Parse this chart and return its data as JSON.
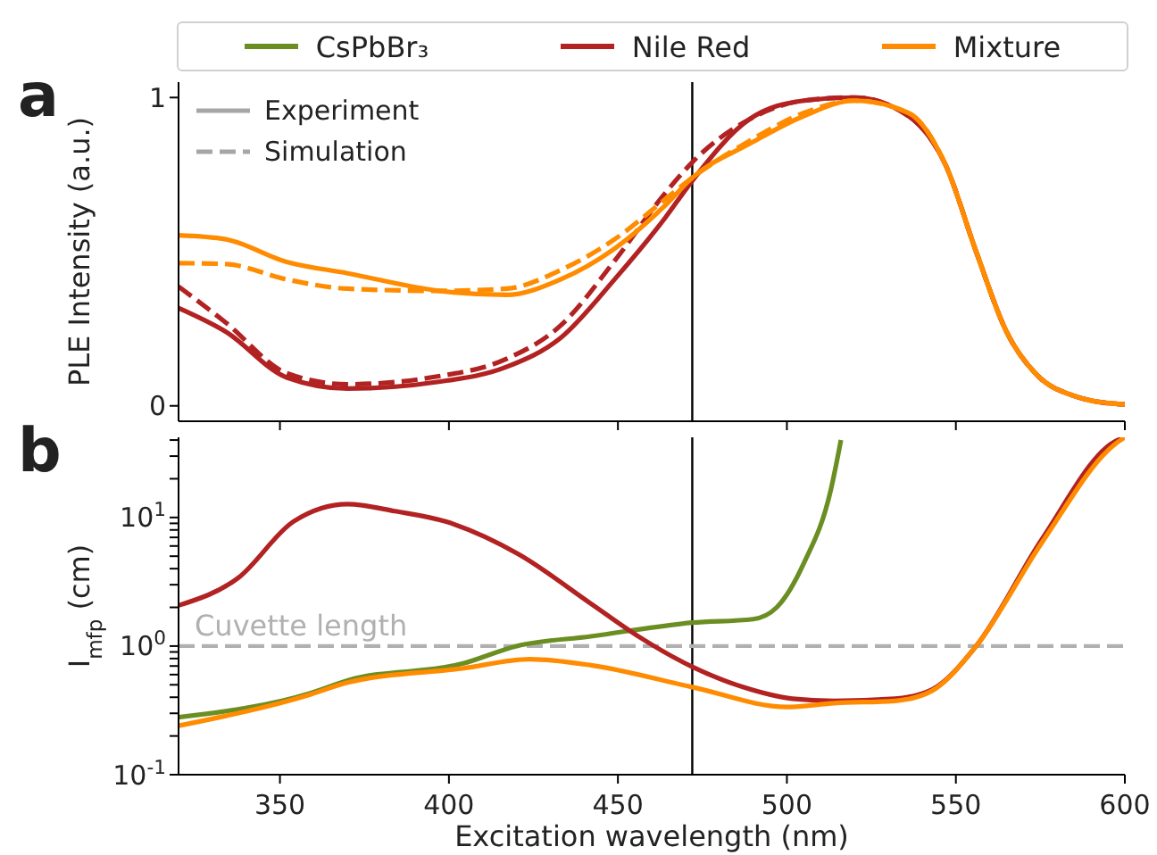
{
  "chart_data": [
    {
      "type": "line",
      "ylabel": "PLE Intensity (a.u.)",
      "annotations": [
        "a",
        "Experiment",
        "Simulation"
      ],
      "xlim": [
        320,
        600
      ],
      "xticks": [
        {
          "value": 350,
          "label": null
        },
        {
          "value": 400,
          "label": null
        },
        {
          "value": 450,
          "label": null
        },
        {
          "value": 500,
          "label": null
        },
        {
          "value": 550,
          "label": null
        },
        {
          "value": 600,
          "label": null
        }
      ],
      "ylim": [
        -0.05,
        1.05
      ],
      "yticks": [
        0,
        1
      ],
      "tick_labels": "y",
      "marker": "none",
      "ref_lines": [
        {
          "axis": "x",
          "value": 472,
          "color": "#000000"
        }
      ],
      "series": [
        {
          "color": "#b22222",
          "line_style": "solid",
          "x": [
            320,
            334,
            352,
            370,
            397,
            417,
            433,
            449,
            464,
            472,
            489,
            505,
            520,
            536,
            547,
            556,
            565,
            574,
            585,
            598,
            600
          ],
          "values": [
            0.317,
            0.24,
            0.092,
            0.056,
            0.078,
            0.126,
            0.22,
            0.41,
            0.61,
            0.73,
            0.93,
            0.99,
            1.0,
            0.94,
            0.78,
            0.5,
            0.24,
            0.1,
            0.032,
            0.006,
            0.005
          ]
        },
        {
          "color": "#b22222",
          "line_style": "dashed",
          "x": [
            320,
            334,
            352,
            370,
            397,
            417,
            433,
            449,
            464,
            472,
            489,
            505,
            520,
            536,
            547,
            556,
            565,
            574,
            585,
            598,
            600
          ],
          "values": [
            0.387,
            0.27,
            0.106,
            0.07,
            0.096,
            0.152,
            0.26,
            0.47,
            0.69,
            0.79,
            0.93,
            0.99,
            1.0,
            0.94,
            0.78,
            0.5,
            0.24,
            0.1,
            0.032,
            0.006,
            0.005
          ]
        },
        {
          "color": "#ff8c00",
          "line_style": "solid",
          "x": [
            320,
            334,
            352,
            370,
            397,
            417,
            433,
            449,
            464,
            472,
            489,
            505,
            520,
            536,
            547,
            556,
            565,
            574,
            585,
            598,
            600
          ],
          "values": [
            0.553,
            0.54,
            0.467,
            0.43,
            0.373,
            0.36,
            0.41,
            0.51,
            0.65,
            0.74,
            0.85,
            0.94,
            0.99,
            0.95,
            0.78,
            0.5,
            0.24,
            0.1,
            0.032,
            0.006,
            0.005
          ]
        },
        {
          "color": "#ff8c00",
          "line_style": "dashed",
          "x": [
            320,
            334,
            352,
            370,
            397,
            417,
            433,
            449,
            464,
            472,
            489,
            505,
            520,
            536,
            547,
            556,
            565,
            574,
            585,
            598,
            600
          ],
          "values": [
            0.463,
            0.46,
            0.41,
            0.38,
            0.373,
            0.38,
            0.44,
            0.54,
            0.67,
            0.74,
            0.86,
            0.95,
            0.99,
            0.95,
            0.78,
            0.5,
            0.24,
            0.1,
            0.032,
            0.006,
            0.005
          ]
        }
      ]
    },
    {
      "type": "line",
      "xlabel": "Excitation wavelength (nm)",
      "ylabel": "I$_{mfp}$ (cm)",
      "annotations": [
        "b"
      ],
      "xlim": [
        320,
        600
      ],
      "xticks": [
        350,
        400,
        450,
        500,
        550,
        600
      ],
      "log": "y",
      "ylim": [
        0.1,
        42
      ],
      "yticks": [
        {
          "value": 0.1,
          "label": "10$^{-1}$"
        },
        {
          "value": 0.2,
          "label": null
        },
        {
          "value": 0.3,
          "label": null
        },
        {
          "value": 0.4,
          "label": null
        },
        {
          "value": 0.5,
          "label": null
        },
        {
          "value": 0.6,
          "label": null
        },
        {
          "value": 0.7,
          "label": null
        },
        {
          "value": 0.8,
          "label": null
        },
        {
          "value": 0.9,
          "label": null
        },
        {
          "value": 1,
          "label": "10$^{0}$"
        },
        {
          "value": 2,
          "label": null
        },
        {
          "value": 3,
          "label": null
        },
        {
          "value": 4,
          "label": null
        },
        {
          "value": 5,
          "label": null
        },
        {
          "value": 6,
          "label": null
        },
        {
          "value": 7,
          "label": null
        },
        {
          "value": 8,
          "label": null
        },
        {
          "value": 9,
          "label": null
        },
        {
          "value": 10,
          "label": "10$^{1}$"
        },
        {
          "value": 20,
          "label": null
        },
        {
          "value": 30,
          "label": null
        },
        {
          "value": 40,
          "label": null
        }
      ],
      "legend": "top",
      "marker": "none",
      "ref_lines": [
        {
          "axis": "x",
          "value": 472,
          "color": "#000000"
        },
        {
          "axis": "y",
          "value": 1,
          "label": "Cuvette length",
          "color": "#b0b0b0",
          "line_style": "dashed"
        }
      ],
      "series": [
        {
          "name": "CsPbBr₃",
          "color": "#6b8e23",
          "x": [
            320,
            359,
            370,
            404,
            420,
            442,
            472,
            490,
            497,
            505,
            513,
            516
          ],
          "values": [
            0.28,
            0.43,
            0.54,
            0.73,
            1.0,
            1.19,
            1.52,
            1.62,
            2.0,
            4.4,
            16.4,
            40
          ]
        },
        {
          "name": "Nile Red",
          "color": "#b22222",
          "x": [
            320,
            337.7,
            354,
            370,
            384,
            399,
            420.5,
            442,
            456.5,
            472,
            487,
            501.6,
            514,
            532,
            543,
            556,
            575.5,
            597,
            600
          ],
          "values": [
            2.07,
            3.4,
            9.3,
            12.7,
            11.2,
            9.3,
            5.2,
            2.14,
            1.17,
            0.69,
            0.48,
            0.39,
            0.375,
            0.39,
            0.46,
            1.0,
            6.8,
            38.9,
            42
          ]
        },
        {
          "name": "Mixture",
          "color": "#ff8c00",
          "x": [
            320,
            359,
            370,
            404,
            424,
            442,
            472,
            500,
            514,
            532,
            543,
            556,
            575.5,
            597,
            600
          ],
          "values": [
            0.24,
            0.42,
            0.52,
            0.67,
            0.79,
            0.71,
            0.48,
            0.336,
            0.36,
            0.375,
            0.45,
            1.0,
            6.4,
            37,
            42
          ]
        }
      ]
    }
  ]
}
